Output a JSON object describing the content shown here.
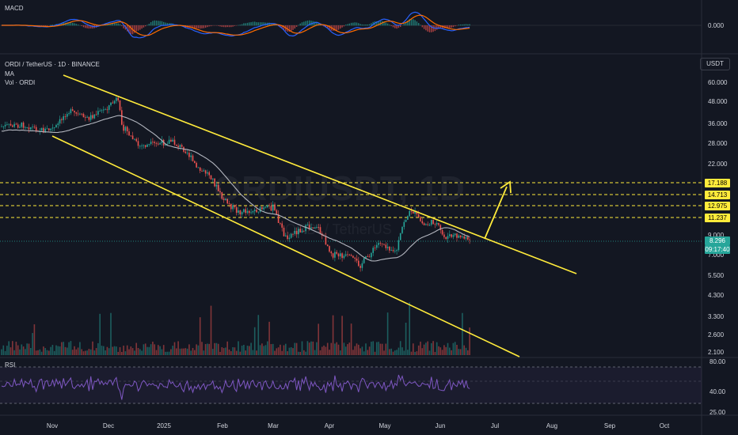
{
  "panels": {
    "macd": {
      "label": "MACD",
      "value": "0.000"
    },
    "main": {
      "title": "ORDI / TetherUS · 1D · BINANCE",
      "indicators": [
        "MA",
        "Vol · ORDI"
      ],
      "currency": "USDT",
      "watermark": "ORDIUSDT, 1D",
      "watermark_sub": "ORDI / TetherUS"
    },
    "rsi": {
      "label": "RSI"
    }
  },
  "price_axis": {
    "ticks": [
      "60.000",
      "48.000",
      "36.000",
      "28.000",
      "22.000",
      "9.000",
      "7.000",
      "5.500",
      "4.300",
      "3.300",
      "2.600",
      "2.100"
    ]
  },
  "rsi_axis": {
    "ticks": [
      "80.00",
      "40.00",
      "25.00"
    ]
  },
  "time_axis": {
    "ticks": [
      "Nov",
      "Dec",
      "2025",
      "Feb",
      "Mar",
      "Apr",
      "May",
      "Jun",
      "Jul",
      "Aug",
      "Sep",
      "Oct"
    ]
  },
  "levels": [
    {
      "label": "17.188"
    },
    {
      "label": "14.713"
    },
    {
      "label": "12.975"
    },
    {
      "label": "11.237"
    }
  ],
  "last_price": {
    "value": "8.296",
    "countdown": "09:17:40"
  },
  "colors": {
    "background": "#131722",
    "up": "#26a69a",
    "down": "#ef5350",
    "channel": "#ffeb3b",
    "ma": "#b2b5be",
    "rsi": "#7e57c2"
  },
  "icons": [
    "up-arrow-icon"
  ]
}
